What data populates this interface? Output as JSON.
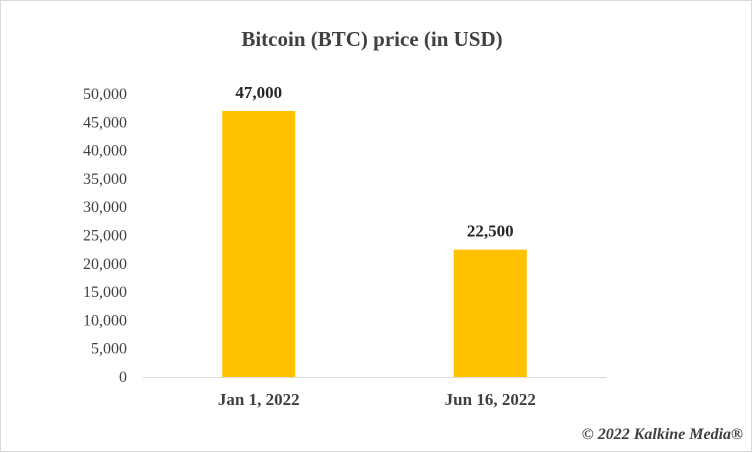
{
  "chart_data": {
    "type": "bar",
    "title": "Bitcoin (BTC) price (in USD)",
    "categories": [
      "Jan 1, 2022",
      "Jun 16, 2022"
    ],
    "values": [
      47000,
      22500
    ],
    "data_labels": [
      "47,000",
      "22,500"
    ],
    "yticks": [
      "0",
      "5,000",
      "10,000",
      "15,000",
      "20,000",
      "25,000",
      "30,000",
      "35,000",
      "40,000",
      "45,000",
      "50,000"
    ],
    "ylim": [
      0,
      50000
    ],
    "xlabel": "",
    "ylabel": "",
    "grid": false,
    "legend": "none",
    "bar_color": "#FFC000"
  },
  "copyright": "© 2022 Kalkine Media®"
}
